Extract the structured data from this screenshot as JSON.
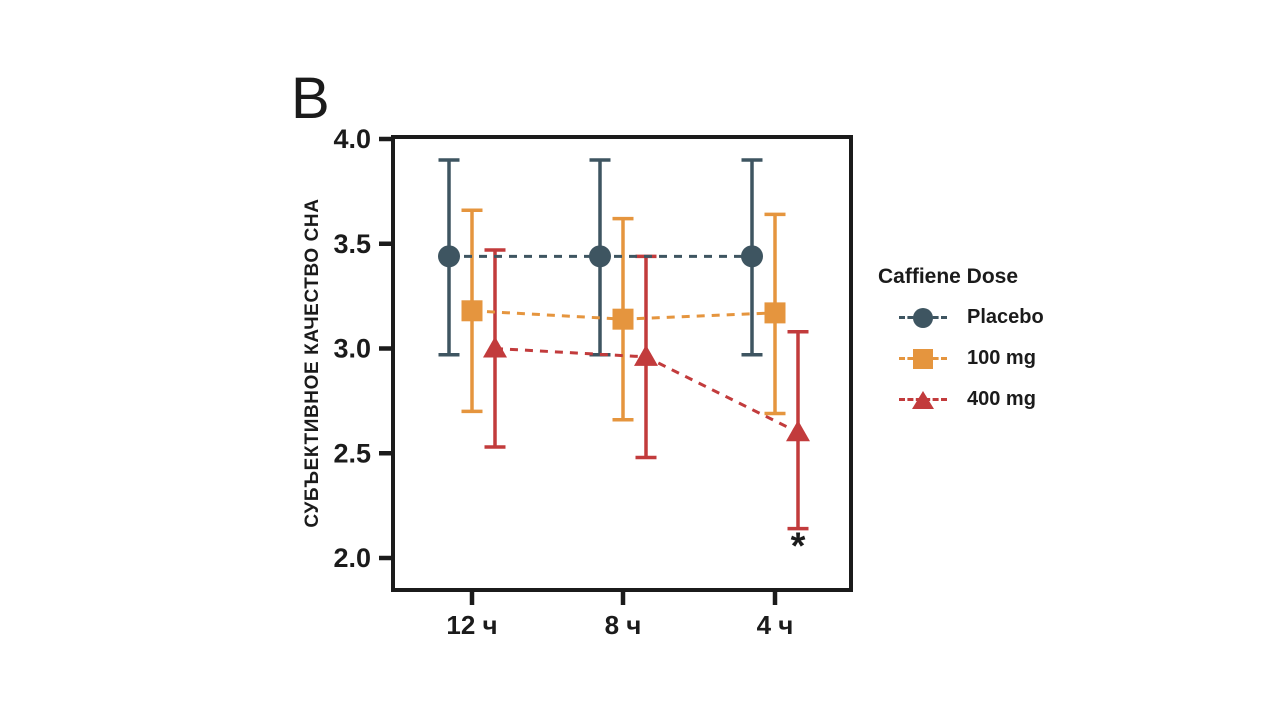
{
  "panel_label": "B",
  "figure": {
    "background": "#ffffff",
    "axis_color": "#1b1b1b",
    "text_color": "#1b1b1b"
  },
  "chart_data": {
    "type": "line",
    "title": "",
    "categories": [
      "12 ч",
      "8 ч",
      "4 ч"
    ],
    "xlabel": "",
    "ylabel": "СУБЪЕКТИВНОЕ КАЧЕСТВО СНА",
    "ylim": [
      2.0,
      4.0
    ],
    "yticks": [
      "4.0",
      "3.5",
      "3.0",
      "2.5",
      "2.0"
    ],
    "grid": false,
    "legend_title": "Caffiene Dose",
    "legend_position": "right-of-plot",
    "series": [
      {
        "name": "Placebo",
        "marker": "circle",
        "line_style": "dashed",
        "color": "#3E5561",
        "values": [
          3.44,
          3.44,
          3.44
        ],
        "err_hi": [
          3.9,
          3.9,
          3.9
        ],
        "err_lo": [
          2.97,
          2.97,
          2.97
        ]
      },
      {
        "name": "100 mg",
        "marker": "square",
        "line_style": "dashed",
        "color": "#E5953E",
        "values": [
          3.18,
          3.14,
          3.17
        ],
        "err_hi": [
          3.66,
          3.62,
          3.64
        ],
        "err_lo": [
          2.7,
          2.66,
          2.69
        ]
      },
      {
        "name": "400 mg",
        "marker": "triangle",
        "line_style": "dashed",
        "color": "#C23B3C",
        "values": [
          3.0,
          2.96,
          2.6
        ],
        "err_hi": [
          3.47,
          3.44,
          3.08
        ],
        "err_lo": [
          2.53,
          2.48,
          2.14
        ]
      }
    ],
    "annotations": [
      {
        "text": "*",
        "category_index": 2,
        "series_index": 2,
        "value": 2.06
      }
    ]
  }
}
